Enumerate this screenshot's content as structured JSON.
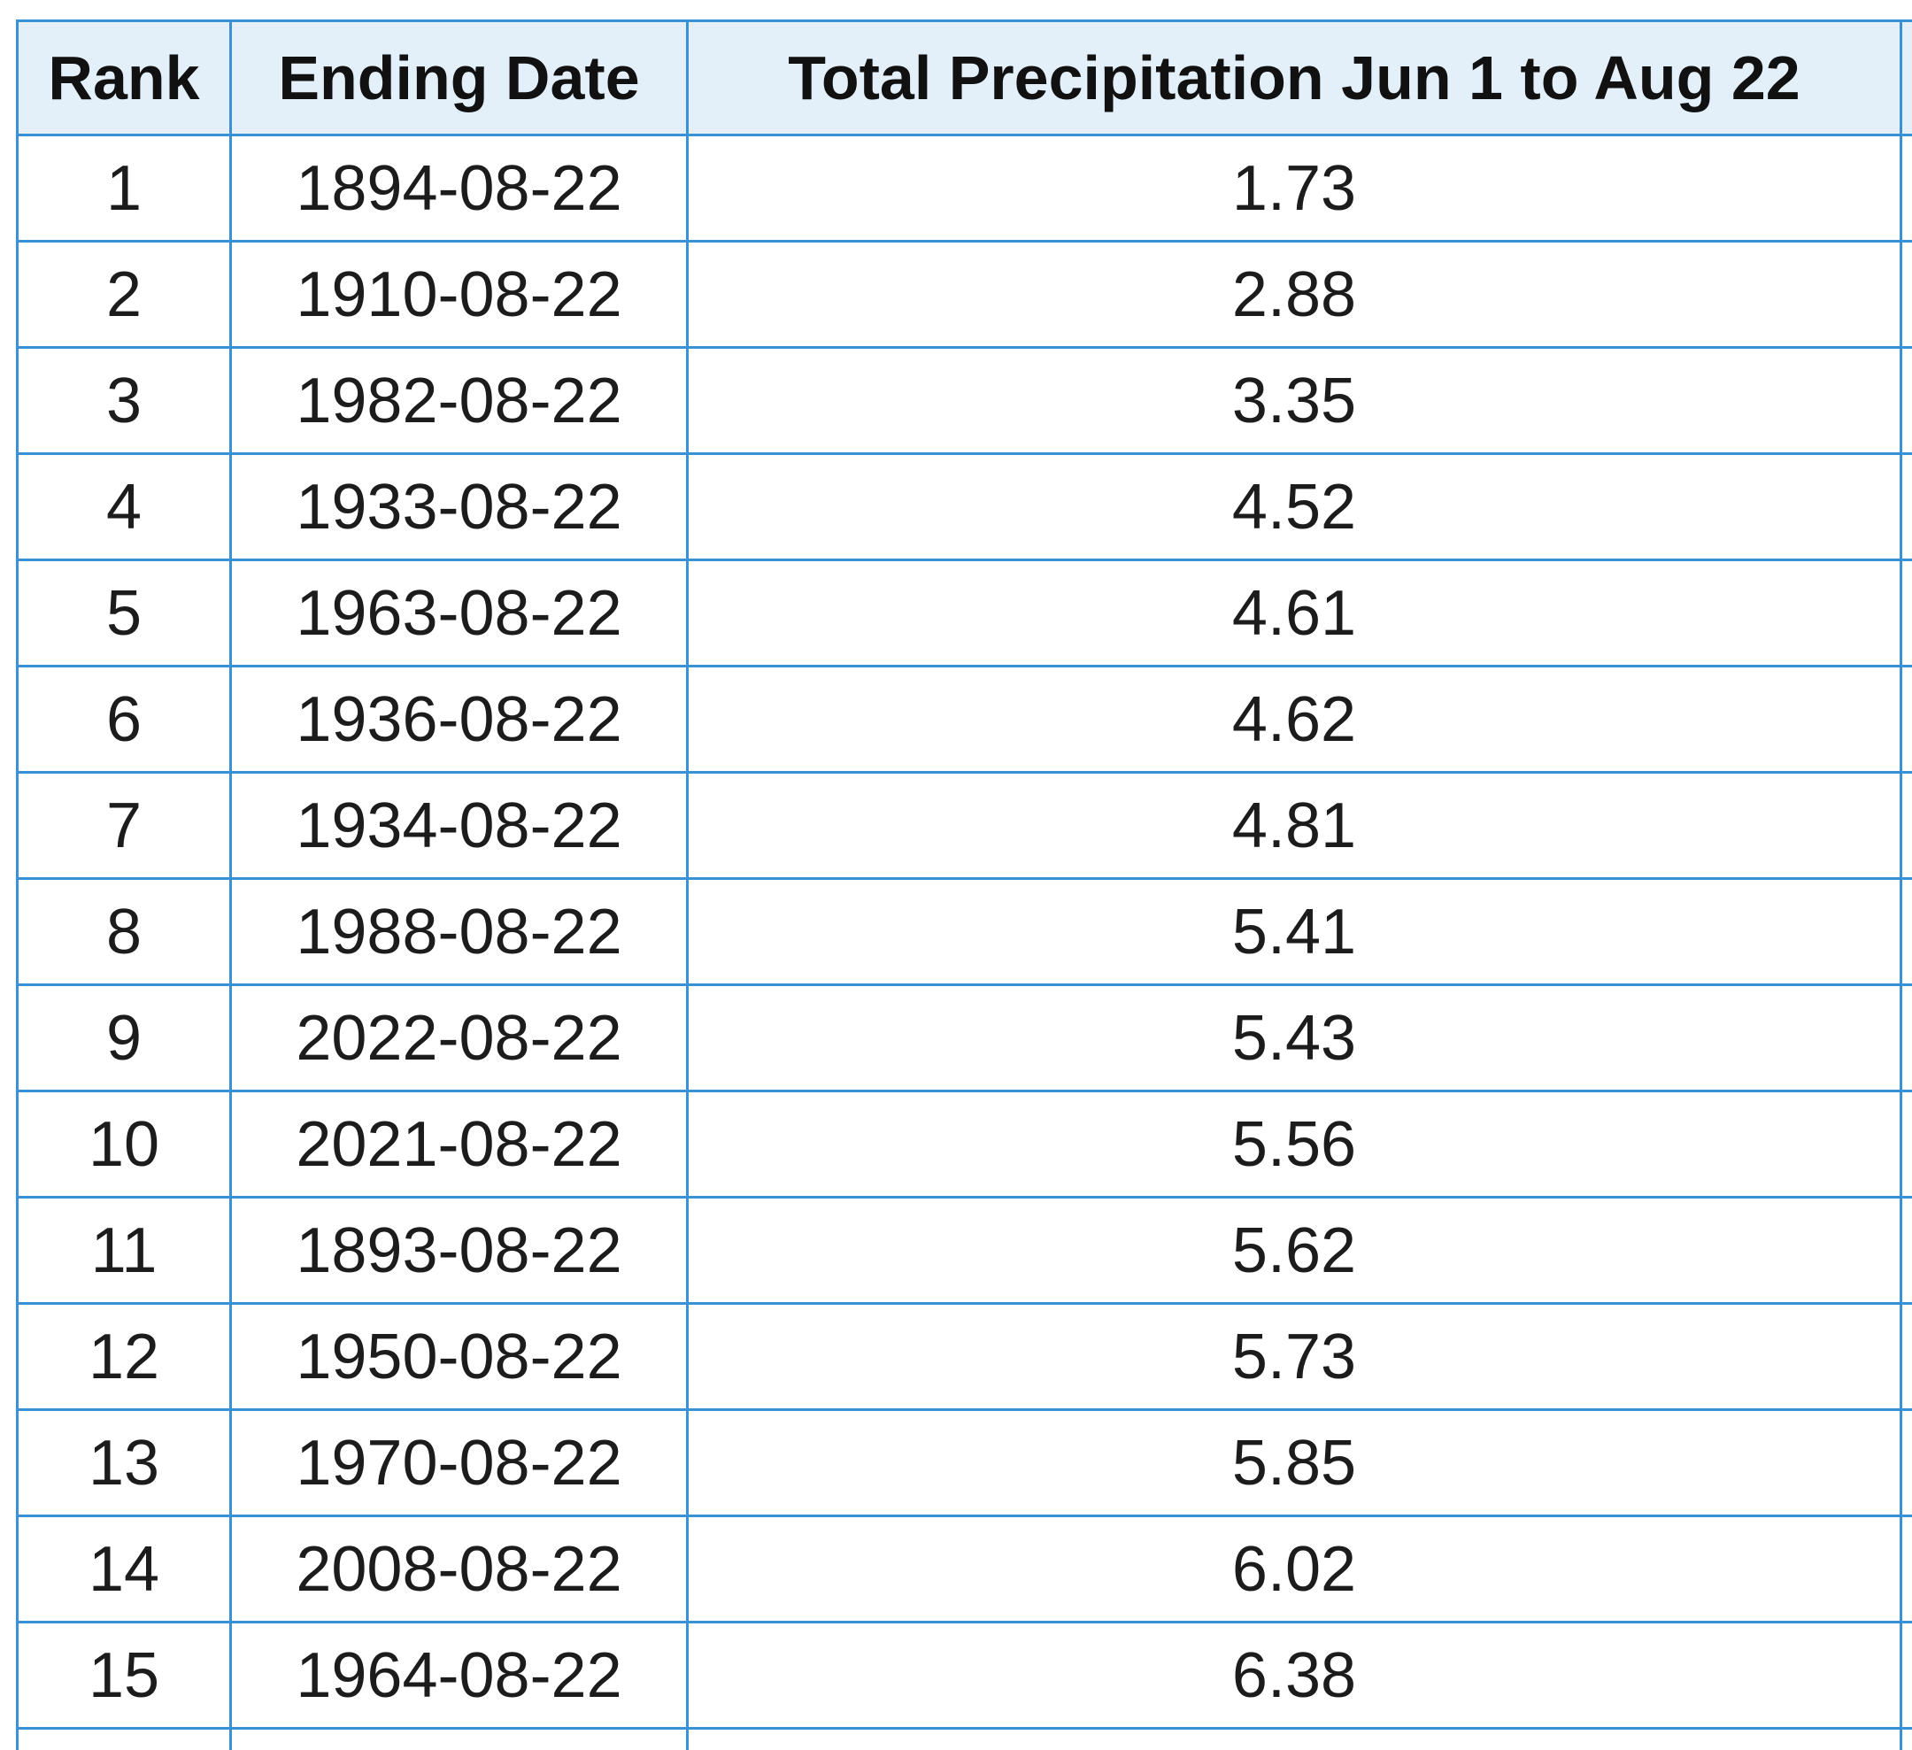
{
  "table": {
    "headers": {
      "rank": "Rank",
      "ending_date": "Ending Date",
      "total_precipitation": "Total Precipitation Jun 1 to Aug 22"
    },
    "rows": [
      {
        "rank": "1",
        "ending_date": "1894-08-22",
        "total_precipitation": "1.73"
      },
      {
        "rank": "2",
        "ending_date": "1910-08-22",
        "total_precipitation": "2.88"
      },
      {
        "rank": "3",
        "ending_date": "1982-08-22",
        "total_precipitation": "3.35"
      },
      {
        "rank": "4",
        "ending_date": "1933-08-22",
        "total_precipitation": "4.52"
      },
      {
        "rank": "5",
        "ending_date": "1963-08-22",
        "total_precipitation": "4.61"
      },
      {
        "rank": "6",
        "ending_date": "1936-08-22",
        "total_precipitation": "4.62"
      },
      {
        "rank": "7",
        "ending_date": "1934-08-22",
        "total_precipitation": "4.81"
      },
      {
        "rank": "8",
        "ending_date": "1988-08-22",
        "total_precipitation": "5.41"
      },
      {
        "rank": "9",
        "ending_date": "2022-08-22",
        "total_precipitation": "5.43"
      },
      {
        "rank": "10",
        "ending_date": "2021-08-22",
        "total_precipitation": "5.56"
      },
      {
        "rank": "11",
        "ending_date": "1893-08-22",
        "total_precipitation": "5.62"
      },
      {
        "rank": "12",
        "ending_date": "1950-08-22",
        "total_precipitation": "5.73"
      },
      {
        "rank": "13",
        "ending_date": "1970-08-22",
        "total_precipitation": "5.85"
      },
      {
        "rank": "14",
        "ending_date": "2008-08-22",
        "total_precipitation": "6.02"
      },
      {
        "rank": "15",
        "ending_date": "1964-08-22",
        "total_precipitation": "6.38"
      }
    ]
  },
  "colors": {
    "border": "#3a92d6",
    "header_background": "#e3f0fa",
    "text": "#1c1c1c"
  }
}
